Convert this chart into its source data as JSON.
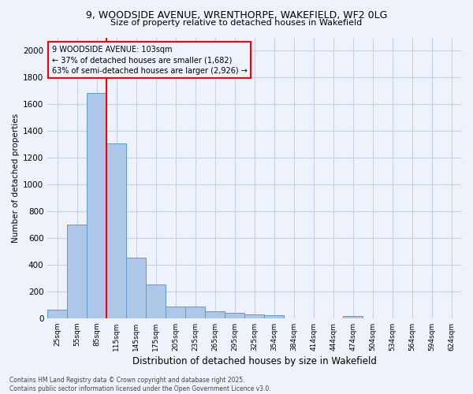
{
  "title_line1": "9, WOODSIDE AVENUE, WRENTHORPE, WAKEFIELD, WF2 0LG",
  "title_line2": "Size of property relative to detached houses in Wakefield",
  "xlabel": "Distribution of detached houses by size in Wakefield",
  "ylabel": "Number of detached properties",
  "categories": [
    "25sqm",
    "55sqm",
    "85sqm",
    "115sqm",
    "145sqm",
    "175sqm",
    "205sqm",
    "235sqm",
    "265sqm",
    "295sqm",
    "325sqm",
    "354sqm",
    "384sqm",
    "414sqm",
    "444sqm",
    "474sqm",
    "504sqm",
    "534sqm",
    "564sqm",
    "594sqm",
    "624sqm"
  ],
  "values": [
    65,
    700,
    1682,
    1310,
    450,
    255,
    90,
    90,
    50,
    40,
    30,
    20,
    0,
    0,
    0,
    15,
    0,
    0,
    0,
    0,
    0
  ],
  "bar_color": "#aec6e8",
  "bar_edge_color": "#5b9bd5",
  "vline_color": "red",
  "annotation_line1": "9 WOODSIDE AVENUE: 103sqm",
  "annotation_line2": "← 37% of detached houses are smaller (1,682)",
  "annotation_line3": "63% of semi-detached houses are larger (2,926) →",
  "annotation_box_color": "red",
  "ylim": [
    0,
    2100
  ],
  "yticks": [
    0,
    200,
    400,
    600,
    800,
    1000,
    1200,
    1400,
    1600,
    1800,
    2000
  ],
  "footer_line1": "Contains HM Land Registry data © Crown copyright and database right 2025.",
  "footer_line2": "Contains public sector information licensed under the Open Government Licence v3.0.",
  "bg_color": "#eef2fb",
  "grid_color": "#c8d0e8"
}
